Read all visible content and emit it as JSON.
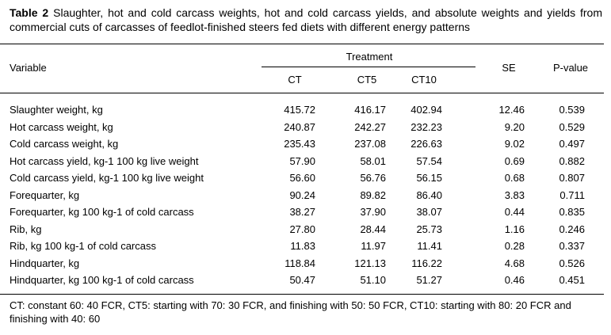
{
  "caption": {
    "label": "Table 2",
    "text": "Slaughter, hot and cold carcass weights, hot and cold carcass yields, and absolute weights and yields from commercial cuts of carcasses of feedlot-finished steers fed diets with different energy patterns"
  },
  "header": {
    "variable": "Variable",
    "treatment": "Treatment",
    "ct": "CT",
    "ct5": "CT5",
    "ct10": "CT10",
    "se": "SE",
    "pvalue": "P-value"
  },
  "rows": [
    {
      "label": "Slaughter weight, kg",
      "ct": "415.72",
      "ct5": "416.17",
      "ct10": "402.94",
      "se": "12.46",
      "p": "0.539"
    },
    {
      "label": "Hot carcass weight, kg",
      "ct": "240.87",
      "ct5": "242.27",
      "ct10": "232.23",
      "se": "9.20",
      "p": "0.529"
    },
    {
      "label": "Cold carcass weight, kg",
      "ct": "235.43",
      "ct5": "237.08",
      "ct10": "226.63",
      "se": "9.02",
      "p": "0.497"
    },
    {
      "label": "Hot carcass yield, kg-1 100 kg live weight",
      "ct": "57.90",
      "ct5": "58.01",
      "ct10": "57.54",
      "se": "0.69",
      "p": "0.882"
    },
    {
      "label": "Cold carcass yield, kg-1 100 kg live weight",
      "ct": "56.60",
      "ct5": "56.76",
      "ct10": "56.15",
      "se": "0.68",
      "p": "0.807"
    },
    {
      "label": "Forequarter, kg",
      "ct": "90.24",
      "ct5": "89.82",
      "ct10": "86.40",
      "se": "3.83",
      "p": "0.711"
    },
    {
      "label": "Forequarter, kg 100 kg-1 of cold carcass",
      "ct": "38.27",
      "ct5": "37.90",
      "ct10": "38.07",
      "se": "0.44",
      "p": "0.835"
    },
    {
      "label": "Rib, kg",
      "ct": "27.80",
      "ct5": "28.44",
      "ct10": "25.73",
      "se": "1.16",
      "p": "0.246"
    },
    {
      "label": "Rib, kg 100 kg-1 of cold carcass",
      "ct": "11.83",
      "ct5": "11.97",
      "ct10": "11.41",
      "se": "0.28",
      "p": "0.337"
    },
    {
      "label": "Hindquarter, kg",
      "ct": "118.84",
      "ct5": "121.13",
      "ct10": "116.22",
      "se": "4.68",
      "p": "0.526"
    },
    {
      "label": "Hindquarter, kg 100 kg-1 of cold carcass",
      "ct": "50.47",
      "ct5": "51.10",
      "ct10": "51.27",
      "se": "0.46",
      "p": "0.451"
    }
  ],
  "footnote": "CT: constant 60: 40 FCR, CT5: starting with 70: 30 FCR, and finishing with 50: 50 FCR, CT10: starting with 80: 20 FCR and finishing with 40: 60"
}
